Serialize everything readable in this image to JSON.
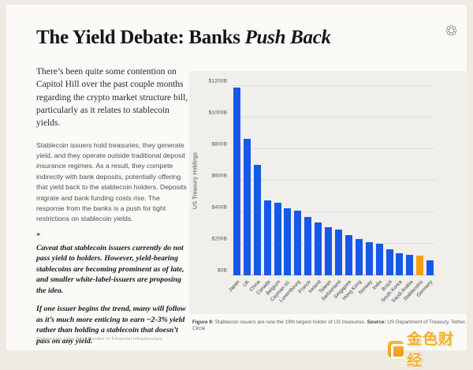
{
  "slide": {
    "title": {
      "regular": "The Yield Debate: Banks ",
      "italic": "Push Back"
    },
    "intro": "There’s been quite some contention on Capitol Hill over the past couple months regarding the crypto market structure bill, particularly as it relates to stablecoin yields.",
    "body": "Stablecoin issuers hold treasuries, they generate yield, and they operate outside traditional deposit insurance regimes. As a result, they compete indirectly with bank deposits, potentially offering that yield back to the stablecoin holders. Deposits migrate and bank funding costs rise. The response from the banks is a push for tight restrictions on stablecoin yields.",
    "footnote_marker": "*",
    "footnote_1": "Caveat that stablecoin issuers currently do not pass yield to holders. However, yield-bearing stablecoins are becoming prominent as of late, and smaller white-label-issuers are proposing the idea.",
    "footnote_2": "If one issuer begins the trend, many will follow as it’s much more enticing to earn ~2-3% yield rather than holding a stablecoin that doesn’t pass on any yield.",
    "caption": {
      "figure_label": "Figure 9:",
      "figure_text": " Stablecoin issuers are now the 19th largest holder of US treasuries. ",
      "source_label": "Source:",
      "source_text": " US Department of Treasury, Tether, Circle"
    },
    "footer_left": "Stablecoins | The Next Frontier in Financial Infrastructure",
    "watermark_text": "金色财经"
  },
  "chart_data": {
    "type": "bar",
    "title": "",
    "ylabel": "US Treasury Holdings",
    "xlabel": "",
    "ylim": [
      0,
      1200
    ],
    "ytick_labels": [
      "$0B",
      "$200B",
      "$400B",
      "$600B",
      "$800B",
      "$1000B",
      "$1200B"
    ],
    "grid": true,
    "categories": [
      "Japan",
      "UK",
      "China",
      "Canada",
      "Belgium",
      "Cayman Isl.",
      "Luxembourg",
      "France",
      "Ireland",
      "Taiwan",
      "Switzerland",
      "Singapore",
      "Hong Kong",
      "Norway",
      "India",
      "Brazil",
      "South Korea",
      "Saudi Arabia",
      "Stablecoins",
      "Germany"
    ],
    "values": [
      1190,
      865,
      700,
      475,
      460,
      425,
      410,
      370,
      335,
      305,
      290,
      255,
      230,
      210,
      200,
      165,
      140,
      130,
      125,
      95
    ],
    "units": "billions USD",
    "bar_color": "#1658e8",
    "highlight_category": "Stablecoins",
    "highlight_color": "#f59e0c"
  }
}
